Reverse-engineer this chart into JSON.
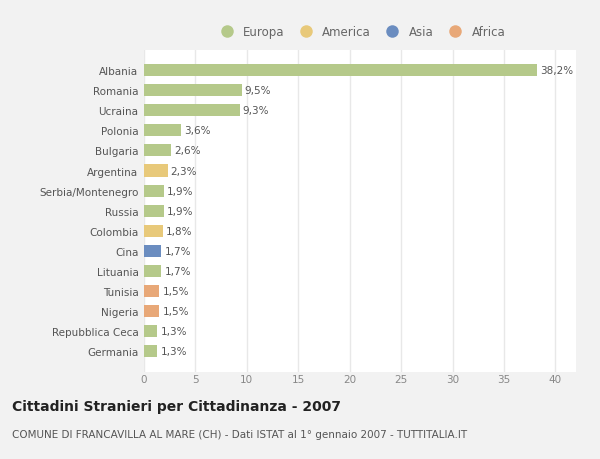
{
  "categories": [
    "Albania",
    "Romania",
    "Ucraina",
    "Polonia",
    "Bulgaria",
    "Argentina",
    "Serbia/Montenegro",
    "Russia",
    "Colombia",
    "Cina",
    "Lituania",
    "Tunisia",
    "Nigeria",
    "Repubblica Ceca",
    "Germania"
  ],
  "values": [
    38.2,
    9.5,
    9.3,
    3.6,
    2.6,
    2.3,
    1.9,
    1.9,
    1.8,
    1.7,
    1.7,
    1.5,
    1.5,
    1.3,
    1.3
  ],
  "labels": [
    "38,2%",
    "9,5%",
    "9,3%",
    "3,6%",
    "2,6%",
    "2,3%",
    "1,9%",
    "1,9%",
    "1,8%",
    "1,7%",
    "1,7%",
    "1,5%",
    "1,5%",
    "1,3%",
    "1,3%"
  ],
  "colors": [
    "#b5c98a",
    "#b5c98a",
    "#b5c98a",
    "#b5c98a",
    "#b5c98a",
    "#e8c97a",
    "#b5c98a",
    "#b5c98a",
    "#e8c97a",
    "#6b8dc0",
    "#b5c98a",
    "#e8a878",
    "#e8a878",
    "#b5c98a",
    "#b5c98a"
  ],
  "legend_labels": [
    "Europa",
    "America",
    "Asia",
    "Africa"
  ],
  "legend_colors": [
    "#b5c98a",
    "#e8c97a",
    "#6b8dc0",
    "#e8a878"
  ],
  "xlim": [
    0,
    42
  ],
  "xticks": [
    0,
    5,
    10,
    15,
    20,
    25,
    30,
    35,
    40
  ],
  "title": "Cittadini Stranieri per Cittadinanza - 2007",
  "subtitle": "COMUNE DI FRANCAVILLA AL MARE (CH) - Dati ISTAT al 1° gennaio 2007 - TUTTITALIA.IT",
  "bg_color": "#f2f2f2",
  "plot_bg_color": "#ffffff",
  "grid_color": "#e8e8e8",
  "bar_height": 0.6,
  "label_fontsize": 7.5,
  "ytick_fontsize": 7.5,
  "xtick_fontsize": 7.5,
  "title_fontsize": 10,
  "subtitle_fontsize": 7.5
}
